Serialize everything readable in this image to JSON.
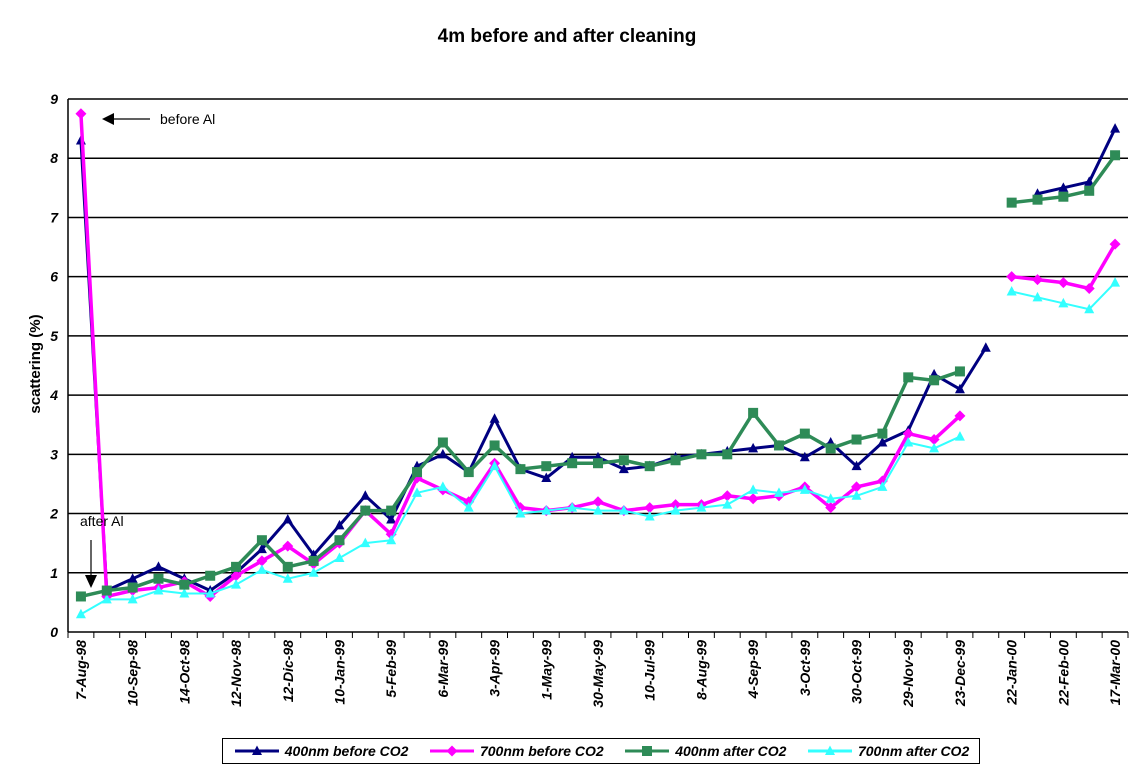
{
  "chart_data": {
    "type": "line",
    "title": "4m before and after cleaning",
    "ylabel": "scattering (%)",
    "xlabel": "",
    "ylim": [
      0,
      9
    ],
    "yticks": [
      "0",
      "1",
      "2",
      "3",
      "4",
      "5",
      "6",
      "7",
      "8",
      "9"
    ],
    "grid": "horizontal",
    "legend_position": "bottom",
    "xtick_labels": [
      "7-Aug-98",
      "10-Sep-98",
      "14-Oct-98",
      "12-Nov-98",
      "12-Dic-98",
      "10-Jan-99",
      "5-Feb-99",
      "6-Mar-99",
      "3-Apr-99",
      "1-May-99",
      "30-May-99",
      "10-Jul-99",
      "8-Aug-99",
      "4-Sep-99",
      "3-Oct-99",
      "30-Oct-99",
      "29-Nov-99",
      "23-Dec-99",
      "22-Jan-00",
      "22-Feb-00",
      "17-Mar-00"
    ],
    "xtick_index": [
      0,
      2,
      4,
      6,
      8,
      10,
      12,
      14,
      16,
      18,
      20,
      22,
      24,
      26,
      28,
      30,
      32,
      34,
      36,
      38,
      40
    ],
    "series": [
      {
        "name": "400nm before CO2",
        "color": "#000080",
        "marker": "triangle",
        "values": [
          8.3,
          0.7,
          0.9,
          1.1,
          0.9,
          0.7,
          1.0,
          1.4,
          1.9,
          1.3,
          1.8,
          2.3,
          1.9,
          2.8,
          3.0,
          2.7,
          3.6,
          2.75,
          2.6,
          2.95,
          2.95,
          2.75,
          2.8,
          2.95,
          3.0,
          3.05,
          3.1,
          3.15,
          2.95,
          3.2,
          2.8,
          3.2,
          3.4,
          4.35,
          4.1,
          4.8,
          null,
          7.4,
          7.5,
          7.6,
          8.5
        ],
        "points_shown_as_unicode_in_legend": ""
      },
      {
        "name": "700nm before CO2",
        "color": "#ff00ff",
        "marker": "diamond",
        "values": [
          8.75,
          0.6,
          0.7,
          0.75,
          0.85,
          0.6,
          0.95,
          1.2,
          1.45,
          1.15,
          1.5,
          2.05,
          1.65,
          2.6,
          2.4,
          2.2,
          2.85,
          2.1,
          2.05,
          2.1,
          2.2,
          2.05,
          2.1,
          2.15,
          2.15,
          2.3,
          2.25,
          2.3,
          2.45,
          2.1,
          2.45,
          2.55,
          3.35,
          3.25,
          3.65,
          null,
          6.0,
          5.95,
          5.9,
          5.8,
          6.55
        ],
        "points_shown_as_unicode_in_legend": ""
      },
      {
        "name": "400nm after CO2",
        "color": "#2e8b57",
        "marker": "square",
        "values": [
          0.6,
          0.7,
          0.75,
          0.9,
          0.8,
          0.95,
          1.1,
          1.55,
          1.1,
          1.2,
          1.55,
          2.05,
          2.05,
          2.7,
          3.2,
          2.7,
          3.15,
          2.75,
          2.8,
          2.85,
          2.85,
          2.9,
          2.8,
          2.9,
          3.0,
          3.0,
          3.7,
          3.15,
          3.35,
          3.1,
          3.25,
          3.35,
          4.3,
          4.25,
          4.4,
          null,
          7.25,
          7.3,
          7.35,
          7.45,
          8.05
        ],
        "points_shown_as_unicode_in_legend": ""
      },
      {
        "name": "700nm after CO2",
        "color": "#33ffff",
        "marker": "triangle",
        "values": [
          0.3,
          0.55,
          0.55,
          0.7,
          0.65,
          0.65,
          0.8,
          1.05,
          0.9,
          1.0,
          1.25,
          1.5,
          1.55,
          2.35,
          2.45,
          2.1,
          2.8,
          2.0,
          2.05,
          2.1,
          2.05,
          2.05,
          1.95,
          2.05,
          2.1,
          2.15,
          2.4,
          2.35,
          2.4,
          2.25,
          2.3,
          2.45,
          3.2,
          3.1,
          3.3,
          null,
          5.75,
          5.65,
          5.55,
          5.45,
          5.9
        ],
        "points_shown_as_unicode_in_legend": ""
      }
    ],
    "annotations": [
      {
        "text": "before Al",
        "arrow": "left"
      },
      {
        "text": "after Al",
        "arrow": "down"
      }
    ]
  }
}
